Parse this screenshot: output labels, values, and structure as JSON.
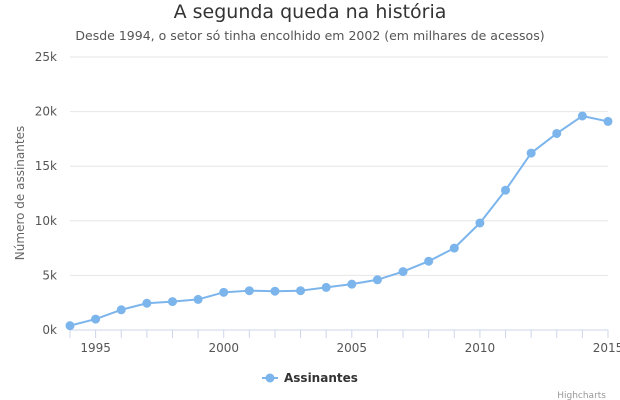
{
  "chart_data": {
    "type": "line",
    "title": "A segunda queda na história",
    "subtitle": "Desde 1994, o setor só tinha encolhido em 2002 (em milhares de acessos)",
    "xlabel": "",
    "ylabel": "Número de assinantes",
    "xlim": [
      1994,
      2015
    ],
    "ylim": [
      0,
      25000
    ],
    "x_ticks": [
      "1995",
      "2000",
      "2005",
      "2010",
      "2015"
    ],
    "y_ticks": [
      "0k",
      "5k",
      "10k",
      "15k",
      "20k",
      "25k"
    ],
    "grid": "horizontal",
    "legend": "bottom-center",
    "series": [
      {
        "name": "Assinantes",
        "color": "#7cb5ec",
        "x": [
          1994,
          1995,
          1996,
          1997,
          1998,
          1999,
          2000,
          2001,
          2002,
          2003,
          2004,
          2005,
          2006,
          2007,
          2008,
          2009,
          2010,
          2011,
          2012,
          2013,
          2014,
          2015
        ],
        "values": [
          400,
          1000,
          1850,
          2450,
          2600,
          2800,
          3450,
          3600,
          3550,
          3600,
          3900,
          4200,
          4600,
          5350,
          6300,
          7500,
          9800,
          12800,
          16200,
          18000,
          19600,
          19100
        ]
      }
    ]
  },
  "credits": "Highcharts",
  "colors": {
    "grid": "#e6e6e6",
    "axis": "#ccd6eb"
  }
}
